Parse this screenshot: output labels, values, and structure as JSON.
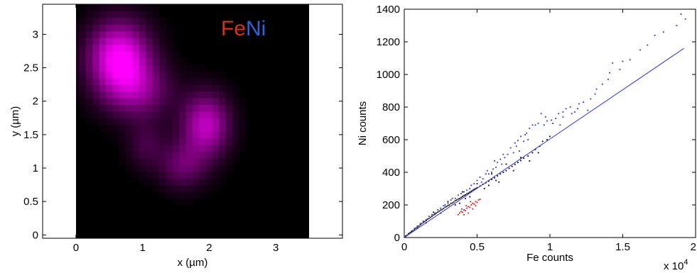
{
  "chart_data": [
    {
      "type": "heatmap",
      "title_parts": [
        {
          "text": "Fe",
          "color": "#d6321c"
        },
        {
          "text": "Ni",
          "color": "#2a64de"
        }
      ],
      "xlabel": "x (µm)",
      "ylabel": "y (µm)",
      "xlim": [
        -0.5,
        4.0
      ],
      "ylim": [
        -0.05,
        3.45
      ],
      "image_extent_x": [
        -0.05,
        3.45
      ],
      "image_extent_y": [
        -0.05,
        3.45
      ],
      "x_ticks": [
        0,
        1,
        2,
        3
      ],
      "x_tick_labels": [
        "0",
        "1",
        "2",
        "3"
      ],
      "y_ticks": [
        0,
        0.5,
        1,
        1.5,
        2,
        2.5,
        3
      ],
      "y_tick_labels": [
        "0",
        "0.5",
        "1",
        "1.5",
        "2",
        "2.5",
        "3"
      ],
      "grid": false,
      "colors": {
        "background": "#000000",
        "blob": "#ff00ff"
      },
      "blobs": [
        {
          "x": 0.65,
          "y": 2.65,
          "sx": 0.32,
          "sy": 0.38,
          "intensity": 1.0
        },
        {
          "x": 0.95,
          "y": 2.15,
          "sx": 0.35,
          "sy": 0.3,
          "intensity": 0.45
        },
        {
          "x": 1.95,
          "y": 1.65,
          "sx": 0.25,
          "sy": 0.33,
          "intensity": 0.75
        },
        {
          "x": 1.6,
          "y": 1.05,
          "sx": 0.25,
          "sy": 0.25,
          "intensity": 0.4
        },
        {
          "x": 1.05,
          "y": 1.35,
          "sx": 0.2,
          "sy": 0.25,
          "intensity": 0.25
        }
      ]
    },
    {
      "type": "scatter",
      "xlabel": "Fe counts",
      "ylabel": "Ni counts",
      "xlim": [
        0,
        20000
      ],
      "ylim": [
        0,
        1400
      ],
      "x_ticks": [
        0,
        5000,
        10000,
        15000,
        20000
      ],
      "x_tick_labels": [
        "0",
        "0.5",
        "1",
        "1.5",
        "2"
      ],
      "x_multiplier_base": "x 10",
      "x_multiplier_exp": "4",
      "y_ticks": [
        0,
        200,
        400,
        600,
        800,
        1000,
        1200,
        1400
      ],
      "y_tick_labels": [
        "0",
        "200",
        "400",
        "600",
        "800",
        "1000",
        "1200",
        "1400"
      ],
      "grid": false,
      "fit_line": {
        "x": [
          0,
          19200
        ],
        "y": [
          0,
          1160
        ],
        "color": "#2a32d8"
      },
      "series": [
        {
          "color": "#2a32d8",
          "points": [
            [
              19000,
              1370
            ],
            [
              19300,
              1340
            ],
            [
              18700,
              1300
            ],
            [
              17800,
              1260
            ],
            [
              17200,
              1240
            ],
            [
              16700,
              1180
            ],
            [
              16200,
              1150
            ],
            [
              15500,
              1090
            ],
            [
              15000,
              1080
            ],
            [
              14300,
              1070
            ],
            [
              14800,
              1030
            ],
            [
              14100,
              1010
            ],
            [
              14000,
              970
            ],
            [
              13600,
              940
            ],
            [
              13200,
              910
            ],
            [
              13100,
              880
            ],
            [
              12800,
              850
            ],
            [
              12300,
              830
            ],
            [
              12000,
              820
            ],
            [
              11900,
              790
            ],
            [
              11400,
              800
            ],
            [
              11100,
              790
            ],
            [
              11500,
              760
            ],
            [
              10900,
              770
            ],
            [
              10600,
              760
            ],
            [
              10900,
              740
            ],
            [
              10400,
              730
            ],
            [
              10200,
              700
            ],
            [
              10100,
              720
            ],
            [
              9800,
              715
            ],
            [
              9400,
              760
            ],
            [
              9600,
              690
            ],
            [
              9200,
              700
            ],
            [
              9000,
              690
            ],
            [
              8800,
              690
            ],
            [
              8600,
              670
            ],
            [
              8400,
              640
            ],
            [
              8000,
              620
            ],
            [
              8500,
              600
            ],
            [
              8200,
              590
            ],
            [
              7800,
              595
            ],
            [
              7700,
              560
            ],
            [
              7900,
              530
            ],
            [
              7500,
              520
            ],
            [
              7300,
              550
            ],
            [
              7100,
              510
            ],
            [
              6900,
              490
            ],
            [
              6600,
              480
            ],
            [
              6700,
              450
            ],
            [
              6400,
              460
            ],
            [
              6300,
              430
            ],
            [
              6100,
              420
            ],
            [
              6000,
              400
            ],
            [
              5800,
              390
            ],
            [
              5600,
              390
            ],
            [
              5400,
              360
            ],
            [
              5200,
              370
            ],
            [
              5300,
              340
            ],
            [
              5000,
              350
            ],
            [
              4800,
              330
            ],
            [
              4600,
              320
            ],
            [
              4500,
              300
            ],
            [
              4300,
              290
            ],
            [
              4100,
              280
            ],
            [
              3900,
              270
            ],
            [
              3700,
              260
            ],
            [
              3500,
              240
            ],
            [
              3300,
              240
            ],
            [
              3200,
              230
            ],
            [
              3000,
              210
            ],
            [
              2800,
              200
            ],
            [
              2700,
              195
            ],
            [
              2500,
              180
            ],
            [
              2300,
              170
            ],
            [
              2100,
              150
            ],
            [
              1900,
              140
            ],
            [
              1700,
              130
            ],
            [
              1500,
              110
            ],
            [
              1300,
              100
            ],
            [
              1100,
              85
            ],
            [
              900,
              70
            ],
            [
              700,
              55
            ],
            [
              500,
              40
            ],
            [
              300,
              25
            ],
            [
              100,
              10
            ],
            [
              8300,
              630
            ],
            [
              9700,
              740
            ],
            [
              7600,
              580
            ],
            [
              6800,
              510
            ],
            [
              11700,
              770
            ],
            [
              12600,
              780
            ],
            [
              10700,
              690
            ],
            [
              6200,
              470
            ],
            [
              5700,
              410
            ]
          ]
        },
        {
          "color": "#000000",
          "points": [
            [
              100,
              8
            ],
            [
              200,
              15
            ],
            [
              300,
              22
            ],
            [
              400,
              30
            ],
            [
              500,
              35
            ],
            [
              600,
              42
            ],
            [
              700,
              50
            ],
            [
              800,
              58
            ],
            [
              900,
              62
            ],
            [
              1000,
              70
            ],
            [
              1100,
              78
            ],
            [
              1200,
              85
            ],
            [
              1300,
              92
            ],
            [
              1400,
              98
            ],
            [
              1500,
              104
            ],
            [
              1600,
              112
            ],
            [
              1700,
              118
            ],
            [
              1800,
              124
            ],
            [
              1900,
              130
            ],
            [
              2000,
              138
            ],
            [
              2100,
              142
            ],
            [
              2200,
              150
            ],
            [
              2300,
              156
            ],
            [
              2400,
              162
            ],
            [
              2500,
              168
            ],
            [
              2600,
              172
            ],
            [
              2700,
              178
            ],
            [
              2800,
              186
            ],
            [
              2900,
              190
            ],
            [
              3000,
              196
            ],
            [
              3100,
              200
            ],
            [
              3200,
              208
            ],
            [
              3300,
              212
            ],
            [
              3400,
              218
            ],
            [
              3500,
              226
            ],
            [
              3600,
              230
            ],
            [
              3700,
              236
            ],
            [
              3800,
              240
            ],
            [
              3900,
              246
            ],
            [
              4000,
              252
            ],
            [
              4100,
              258
            ],
            [
              4200,
              262
            ],
            [
              4300,
              268
            ],
            [
              4400,
              272
            ],
            [
              4500,
              278
            ],
            [
              4600,
              284
            ],
            [
              4700,
              290
            ],
            [
              4800,
              296
            ],
            [
              4900,
              300
            ],
            [
              5000,
              306
            ],
            [
              5200,
              316
            ],
            [
              5400,
              326
            ],
            [
              5600,
              336
            ],
            [
              5800,
              346
            ],
            [
              6000,
              356
            ],
            [
              6200,
              366
            ],
            [
              6400,
              378
            ],
            [
              6600,
              390
            ],
            [
              6800,
              400
            ],
            [
              7000,
              410
            ],
            [
              7200,
              424
            ],
            [
              7400,
              436
            ],
            [
              7600,
              448
            ],
            [
              7800,
              460
            ],
            [
              8000,
              472
            ],
            [
              8200,
              486
            ],
            [
              8500,
              500
            ],
            [
              8800,
              520
            ],
            [
              9000,
              540
            ],
            [
              9300,
              560
            ],
            [
              9500,
              590
            ],
            [
              9800,
              600
            ],
            [
              10000,
              620
            ],
            [
              1500,
              90
            ],
            [
              2500,
              150
            ],
            [
              3500,
              200
            ],
            [
              4500,
              250
            ],
            [
              5500,
              300
            ],
            [
              6500,
              340
            ],
            [
              3000,
              220
            ],
            [
              4000,
              280
            ],
            [
              2000,
              155
            ],
            [
              6000,
              390
            ],
            [
              7000,
              450
            ],
            [
              8000,
              490
            ],
            [
              5000,
              330
            ],
            [
              4200,
              240
            ],
            [
              3800,
              210
            ],
            [
              5800,
              320
            ],
            [
              6300,
              350
            ],
            [
              7500,
              410
            ],
            [
              8600,
              470
            ],
            [
              9200,
              520
            ]
          ]
        },
        {
          "color": "#cc1a1a",
          "points": [
            [
              3700,
              140
            ],
            [
              3800,
              150
            ],
            [
              3900,
              160
            ],
            [
              4000,
              155
            ],
            [
              4100,
              170
            ],
            [
              4200,
              165
            ],
            [
              4300,
              180
            ],
            [
              4400,
              190
            ],
            [
              4500,
              185
            ],
            [
              4600,
              200
            ],
            [
              4700,
              210
            ],
            [
              4800,
              205
            ],
            [
              4900,
              220
            ],
            [
              5000,
              215
            ],
            [
              5100,
              230
            ],
            [
              4100,
              140
            ],
            [
              4400,
              150
            ],
            [
              4700,
              175
            ],
            [
              4900,
              195
            ],
            [
              5200,
              235
            ],
            [
              3950,
              175
            ],
            [
              4550,
              220
            ],
            [
              4250,
              195
            ]
          ]
        }
      ]
    }
  ]
}
